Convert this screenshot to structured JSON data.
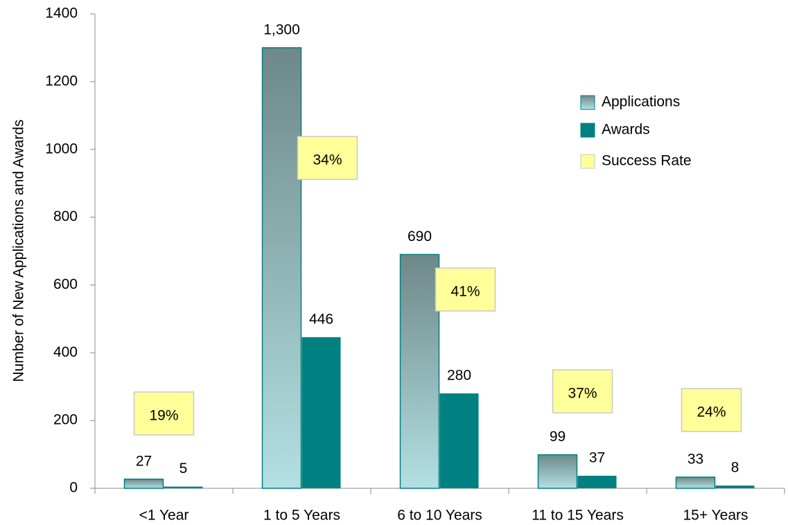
{
  "chart_data": {
    "type": "bar",
    "y_label": "Number of New Applications and Awards",
    "categories": [
      "<1 Year",
      "1 to 5 Years",
      "6 to 10 Years",
      "11 to 15 Years",
      "15+ Years"
    ],
    "series": [
      {
        "name": "Applications",
        "color": "#8fb4b6",
        "values": [
          27,
          1300,
          690,
          99,
          33
        ],
        "value_labels": [
          "27",
          "1,300",
          "690",
          "99",
          "33"
        ]
      },
      {
        "name": "Awards",
        "color": "#008080",
        "values": [
          5,
          446,
          280,
          37,
          8
        ]
      },
      {
        "name": "Success Rate",
        "color": "#ffff99",
        "values": [
          19,
          34,
          41,
          37,
          24
        ],
        "value_labels": [
          "19%",
          "34%",
          "41%",
          "37%",
          "24%"
        ]
      }
    ],
    "ylim": [
      0,
      1400
    ],
    "yticks": [
      0,
      200,
      400,
      600,
      800,
      1000,
      1200,
      1400
    ],
    "legend": "upper right"
  }
}
